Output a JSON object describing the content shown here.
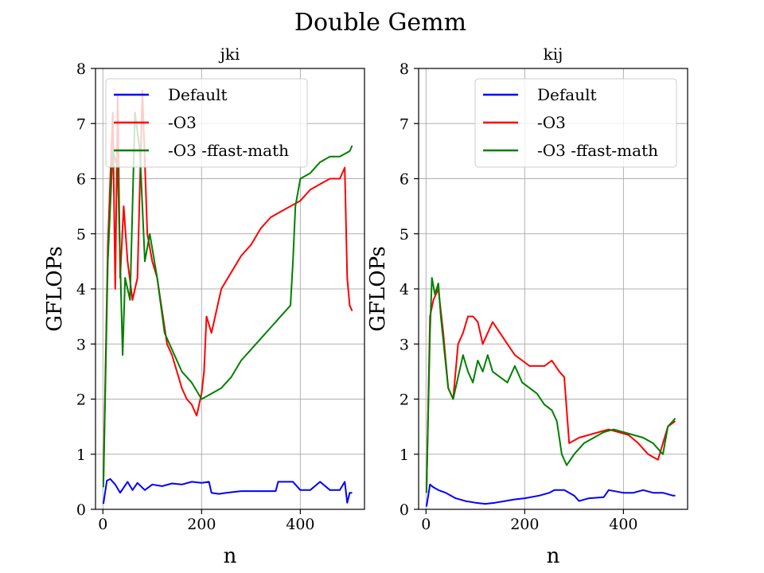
{
  "suptitle": "Double Gemm",
  "chart_data": [
    {
      "type": "line",
      "title": "jki",
      "xlabel": "n",
      "ylabel": "GFLOPs",
      "xlim": [
        -15,
        530
      ],
      "ylim": [
        0,
        8
      ],
      "xticks": [
        0,
        200,
        400
      ],
      "yticks": [
        0,
        1,
        2,
        3,
        4,
        5,
        6,
        7,
        8
      ],
      "grid": true,
      "legend_position": "upper-left",
      "series": [
        {
          "name": "Default",
          "color": "#0000ff",
          "x": [
            1,
            8,
            15,
            25,
            35,
            50,
            60,
            70,
            85,
            100,
            120,
            140,
            160,
            180,
            200,
            215,
            220,
            235,
            250,
            280,
            310,
            350,
            355,
            385,
            400,
            420,
            440,
            460,
            480,
            490,
            495,
            500,
            505
          ],
          "y": [
            0.1,
            0.52,
            0.55,
            0.45,
            0.3,
            0.5,
            0.35,
            0.48,
            0.35,
            0.45,
            0.42,
            0.47,
            0.45,
            0.5,
            0.48,
            0.5,
            0.3,
            0.28,
            0.3,
            0.33,
            0.33,
            0.33,
            0.5,
            0.5,
            0.35,
            0.35,
            0.5,
            0.35,
            0.35,
            0.5,
            0.12,
            0.3,
            0.3
          ]
        },
        {
          "name": "-O3",
          "color": "#ff0000",
          "x": [
            1,
            10,
            20,
            25,
            30,
            35,
            42,
            50,
            60,
            70,
            80,
            90,
            100,
            110,
            120,
            130,
            140,
            150,
            160,
            170,
            180,
            190,
            200,
            205,
            210,
            220,
            240,
            260,
            280,
            300,
            320,
            340,
            360,
            380,
            400,
            420,
            440,
            460,
            480,
            490,
            495,
            500,
            505
          ],
          "y": [
            0.5,
            4.8,
            7.2,
            4.0,
            7.5,
            4.2,
            5.5,
            4.5,
            3.8,
            4.2,
            7.6,
            5.0,
            4.5,
            4.2,
            3.6,
            3.0,
            2.8,
            2.5,
            2.2,
            2.0,
            1.9,
            1.7,
            2.1,
            2.5,
            3.5,
            3.2,
            4.0,
            4.3,
            4.6,
            4.8,
            5.1,
            5.3,
            5.4,
            5.5,
            5.6,
            5.8,
            5.9,
            6.0,
            6.0,
            6.2,
            4.2,
            3.7,
            3.6
          ]
        },
        {
          "name": "-O3 -ffast-math",
          "color": "#008000",
          "x": [
            1,
            10,
            20,
            30,
            40,
            45,
            55,
            65,
            75,
            85,
            95,
            110,
            125,
            140,
            160,
            180,
            200,
            220,
            240,
            260,
            280,
            300,
            320,
            340,
            360,
            380,
            385,
            390,
            400,
            420,
            440,
            460,
            480,
            500,
            505
          ],
          "y": [
            0.4,
            4.5,
            6.5,
            6.2,
            2.8,
            4.2,
            3.8,
            7.2,
            6.5,
            4.5,
            5.0,
            4.2,
            3.2,
            2.9,
            2.5,
            2.3,
            2.0,
            2.1,
            2.2,
            2.4,
            2.7,
            2.9,
            3.1,
            3.3,
            3.5,
            3.7,
            4.5,
            5.5,
            6.0,
            6.1,
            6.3,
            6.4,
            6.4,
            6.5,
            6.6
          ]
        }
      ]
    },
    {
      "type": "line",
      "title": "kij",
      "xlabel": "n",
      "ylabel": "GFLOPs",
      "xlim": [
        -15,
        530
      ],
      "ylim": [
        0,
        8
      ],
      "xticks": [
        0,
        200,
        400
      ],
      "yticks": [
        0,
        1,
        2,
        3,
        4,
        5,
        6,
        7,
        8
      ],
      "grid": true,
      "legend_position": "upper-right",
      "series": [
        {
          "name": "Default",
          "color": "#0000ff",
          "x": [
            1,
            8,
            15,
            25,
            40,
            60,
            80,
            100,
            120,
            140,
            160,
            180,
            200,
            230,
            250,
            260,
            280,
            300,
            310,
            330,
            360,
            370,
            400,
            420,
            440,
            460,
            480,
            500,
            505
          ],
          "y": [
            0.05,
            0.45,
            0.4,
            0.35,
            0.3,
            0.2,
            0.15,
            0.12,
            0.1,
            0.12,
            0.15,
            0.18,
            0.2,
            0.25,
            0.3,
            0.35,
            0.35,
            0.25,
            0.15,
            0.2,
            0.22,
            0.35,
            0.3,
            0.3,
            0.35,
            0.3,
            0.3,
            0.25,
            0.25
          ]
        },
        {
          "name": "-O3",
          "color": "#ff0000",
          "x": [
            1,
            8,
            15,
            25,
            35,
            45,
            55,
            65,
            75,
            85,
            95,
            105,
            115,
            125,
            135,
            150,
            165,
            180,
            195,
            210,
            225,
            240,
            255,
            270,
            280,
            290,
            310,
            330,
            350,
            370,
            390,
            410,
            430,
            450,
            470,
            490,
            505
          ],
          "y": [
            0.3,
            3.5,
            3.8,
            4.0,
            3.2,
            2.2,
            2.0,
            3.0,
            3.2,
            3.5,
            3.5,
            3.4,
            3.0,
            3.2,
            3.4,
            3.2,
            3.0,
            2.8,
            2.7,
            2.6,
            2.6,
            2.6,
            2.7,
            2.5,
            2.4,
            1.2,
            1.3,
            1.35,
            1.4,
            1.45,
            1.4,
            1.35,
            1.2,
            1.0,
            0.9,
            1.5,
            1.6
          ]
        },
        {
          "name": "-O3 -ffast-math",
          "color": "#008000",
          "x": [
            1,
            8,
            12,
            18,
            25,
            30,
            38,
            45,
            55,
            65,
            75,
            85,
            95,
            105,
            115,
            125,
            135,
            150,
            165,
            180,
            195,
            210,
            225,
            240,
            255,
            265,
            275,
            285,
            300,
            320,
            340,
            360,
            380,
            400,
            420,
            440,
            460,
            480,
            490,
            500,
            505
          ],
          "y": [
            0.3,
            3.2,
            4.2,
            3.9,
            4.1,
            3.5,
            2.8,
            2.2,
            2.0,
            2.4,
            2.8,
            2.5,
            2.3,
            2.7,
            2.5,
            2.8,
            2.5,
            2.4,
            2.3,
            2.6,
            2.3,
            2.2,
            2.1,
            1.9,
            1.8,
            1.6,
            1.0,
            0.8,
            1.0,
            1.2,
            1.3,
            1.4,
            1.45,
            1.4,
            1.35,
            1.3,
            1.2,
            1.0,
            1.5,
            1.6,
            1.65
          ]
        }
      ]
    }
  ]
}
